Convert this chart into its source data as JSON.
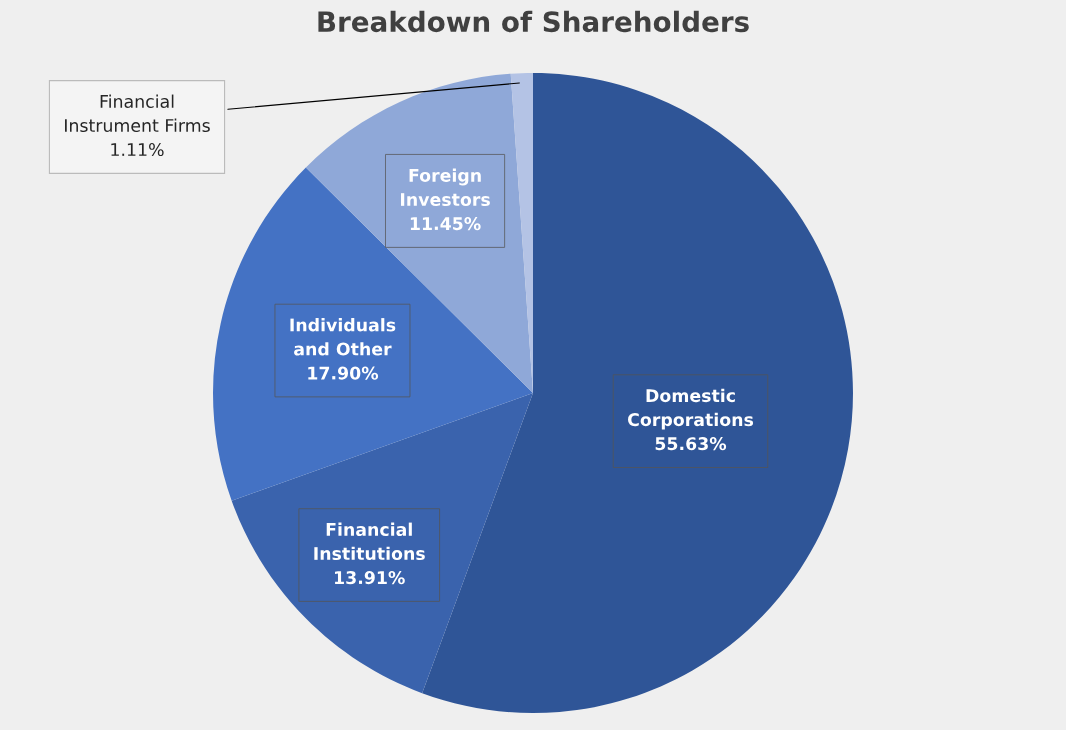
{
  "chart_data": {
    "type": "pie",
    "title": "Breakdown of Shareholders",
    "categories": [
      "Domestic\nCorporations",
      "Financial\nInstitutions",
      "Individuals\nand Other",
      "Foreign\nInvestors",
      "Financial\nInstrument Firms"
    ],
    "values": [
      55.63,
      13.91,
      17.9,
      11.45,
      1.11
    ],
    "value_labels": [
      "55.63%",
      "13.91%",
      "17.90%",
      "11.45%",
      "1.11%"
    ],
    "colors": [
      "#2f5597",
      "#3a63ad",
      "#4472c4",
      "#8fa8d8",
      "#b4c3e5"
    ]
  }
}
